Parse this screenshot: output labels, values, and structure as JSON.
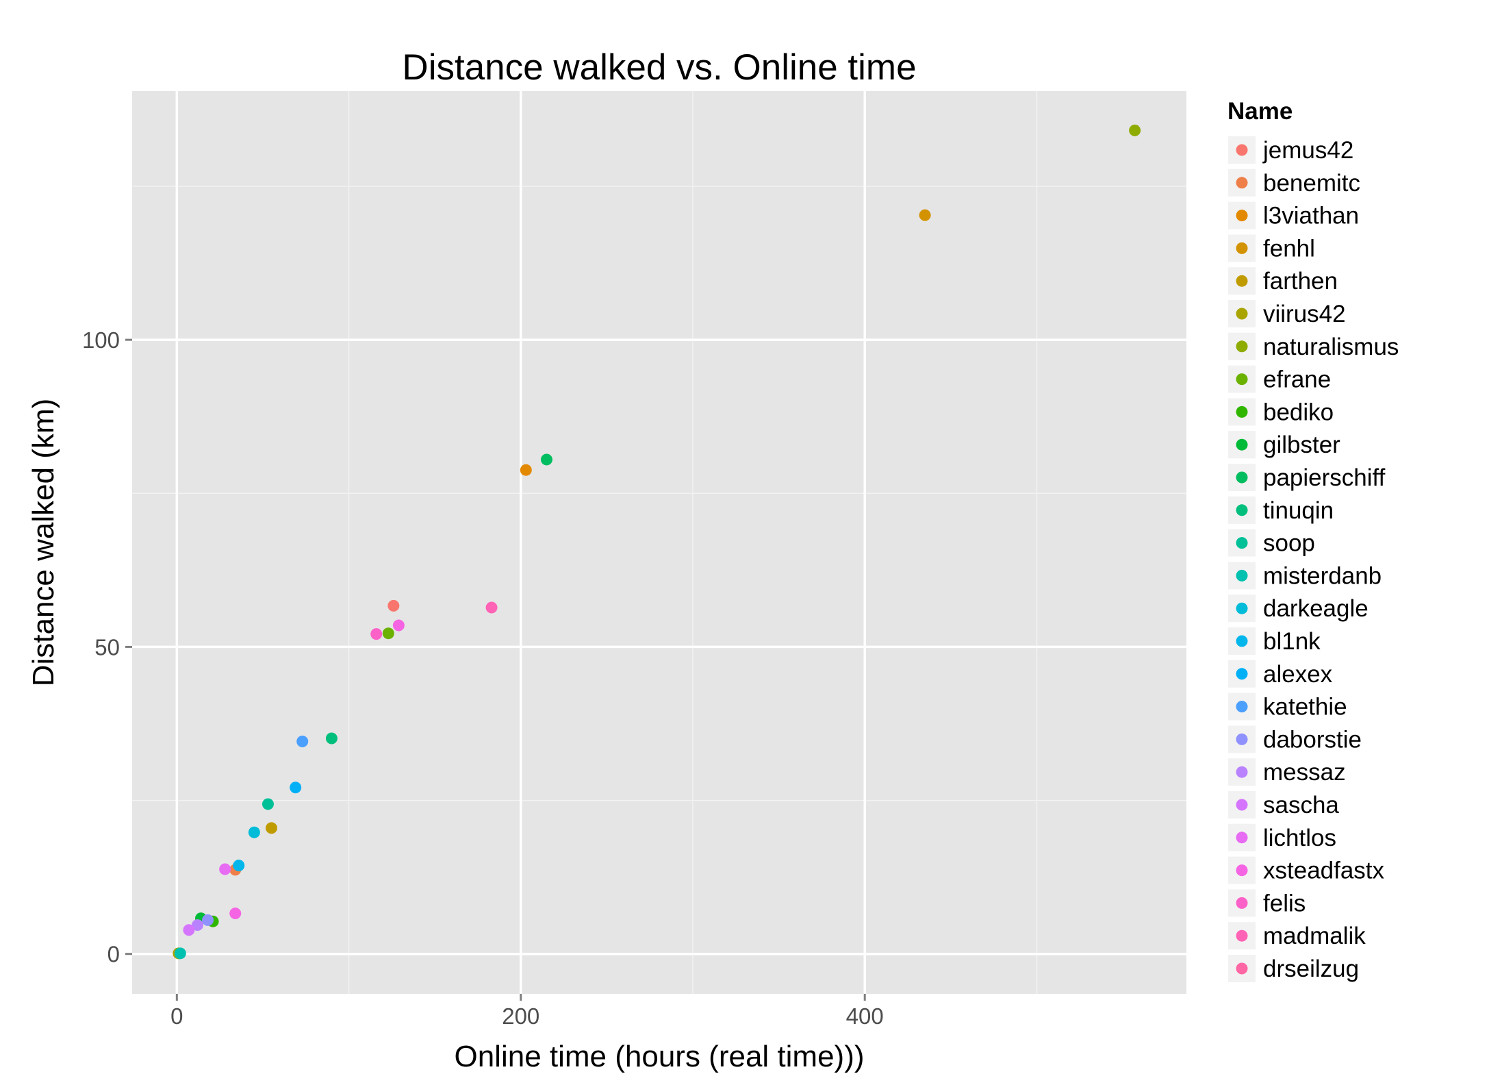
{
  "chart_data": {
    "type": "scatter",
    "title": "Distance walked vs. Online time",
    "xlabel": "Online time (hours (real time)))",
    "ylabel": "Distance walked (km)",
    "xlim": [
      -26,
      587
    ],
    "ylim": [
      -6.5,
      140.5
    ],
    "x_ticks": [
      0,
      200,
      400
    ],
    "x_tick_labels": [
      "0",
      "200",
      "400"
    ],
    "y_ticks": [
      0,
      50,
      100
    ],
    "y_tick_labels": [
      "0",
      "50",
      "100"
    ],
    "grid": true,
    "legend": {
      "title": "Name",
      "position": "right"
    },
    "series": [
      {
        "name": "jemus42",
        "color": "#F8766D",
        "points": [
          [
            126,
            56.7
          ]
        ]
      },
      {
        "name": "benemitc",
        "color": "#EF7F49",
        "points": [
          [
            34,
            13.7
          ]
        ]
      },
      {
        "name": "l3viathan",
        "color": "#E38900",
        "points": [
          [
            203,
            78.8
          ]
        ]
      },
      {
        "name": "fenhl",
        "color": "#D39200",
        "points": [
          [
            435,
            120.3
          ]
        ]
      },
      {
        "name": "farthen",
        "color": "#C09B00",
        "points": [
          [
            55,
            20.5
          ]
        ]
      },
      {
        "name": "viirus42",
        "color": "#A9A400",
        "points": [
          [
            1,
            0.1
          ]
        ]
      },
      {
        "name": "naturalismus",
        "color": "#8EAB00",
        "points": [
          [
            557,
            134.1
          ]
        ]
      },
      {
        "name": "efrane",
        "color": "#6BB100",
        "points": [
          [
            123,
            52.2
          ]
        ]
      },
      {
        "name": "bediko",
        "color": "#31B600",
        "points": [
          [
            21,
            5.3
          ]
        ]
      },
      {
        "name": "gilbster",
        "color": "#00BA38",
        "points": [
          [
            14,
            5.8
          ]
        ]
      },
      {
        "name": "papierschiff",
        "color": "#00BD5F",
        "points": [
          [
            215,
            80.5
          ]
        ]
      },
      {
        "name": "tinuqin",
        "color": "#00BF7D",
        "points": [
          [
            90,
            35.1
          ]
        ]
      },
      {
        "name": "soop",
        "color": "#00C097",
        "points": [
          [
            53,
            24.4
          ]
        ]
      },
      {
        "name": "misterdanb",
        "color": "#00C0AF",
        "points": [
          [
            2,
            0.1
          ]
        ]
      },
      {
        "name": "darkeagle",
        "color": "#00BCD8",
        "points": [
          [
            45,
            19.8
          ]
        ]
      },
      {
        "name": "bl1nk",
        "color": "#00B6EB",
        "points": [
          [
            36,
            14.4
          ]
        ]
      },
      {
        "name": "alexex",
        "color": "#00B0F6",
        "points": [
          [
            69,
            27.1
          ]
        ]
      },
      {
        "name": "katethie",
        "color": "#4A9FFF",
        "points": [
          [
            73,
            34.6
          ]
        ]
      },
      {
        "name": "daborstie",
        "color": "#8F91FF",
        "points": [
          [
            18,
            5.5
          ]
        ]
      },
      {
        "name": "messaz",
        "color": "#B983FF",
        "points": [
          [
            12,
            4.7
          ]
        ]
      },
      {
        "name": "sascha",
        "color": "#D575FE",
        "points": [
          [
            7,
            3.9
          ]
        ]
      },
      {
        "name": "lichtlos",
        "color": "#E76BF3",
        "points": [
          [
            28,
            13.8
          ]
        ]
      },
      {
        "name": "xsteadfastx",
        "color": "#F564E3",
        "points": [
          [
            34,
            6.6
          ],
          [
            129,
            53.5
          ]
        ]
      },
      {
        "name": "felis",
        "color": "#FC61C8",
        "points": [
          [
            116,
            52.1
          ]
        ]
      },
      {
        "name": "madmalik",
        "color": "#FF63B6",
        "points": [
          [
            183,
            56.4
          ]
        ]
      },
      {
        "name": "drseilzug",
        "color": "#FF67A4",
        "points": []
      }
    ]
  }
}
